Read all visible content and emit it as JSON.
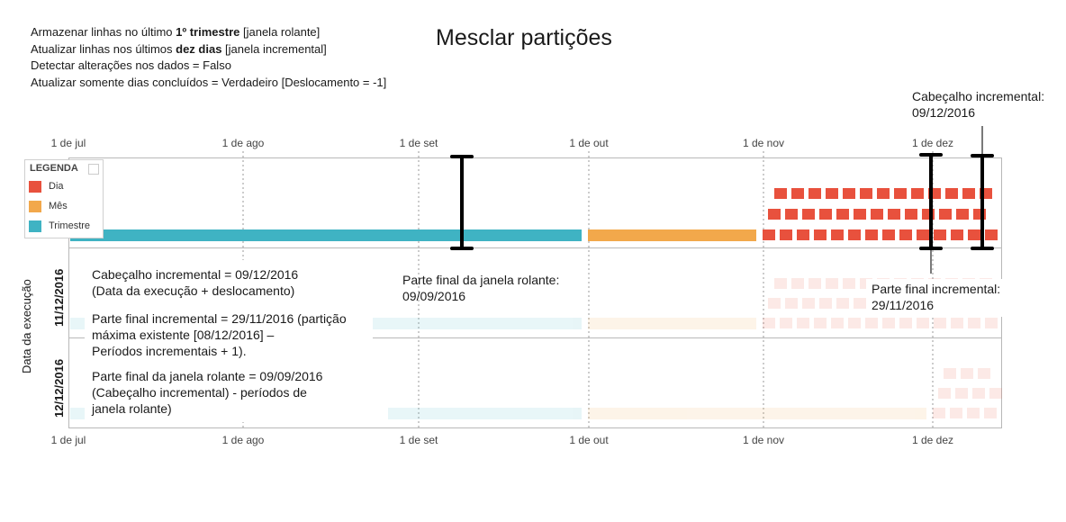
{
  "settings": {
    "line1_pre": "Armazenar linhas no último ",
    "line1_bold": "1º trimestre",
    "line1_post": " [janela rolante]",
    "line2_pre": "Atualizar linhas nos últimos ",
    "line2_bold": "dez dias",
    "line2_post": " [janela incremental]",
    "line3": "Detectar alterações nos dados = Falso",
    "line4": "Atualizar somente dias concluídos = Verdadeiro [Deslocamento = -1]"
  },
  "title": "Mesclar partições",
  "axis": {
    "ticks": [
      "1 de jul",
      "1 de ago",
      "1 de set",
      "1 de out",
      "1 de nov",
      "1 de dez"
    ],
    "y_title": "Data da execução",
    "run_labels": [
      "11/12/2016",
      "12/12/2016"
    ]
  },
  "legend": {
    "title": "LEGENDA",
    "items": [
      {
        "label": "Dia",
        "color": "#e8513d"
      },
      {
        "label": "Mês",
        "color": "#f2a84b"
      },
      {
        "label": "Trimestre",
        "color": "#3fb3c3"
      }
    ]
  },
  "annotations": {
    "incremental_head_title": "Cabeçalho incremental:",
    "incremental_head_date": "09/12/2016",
    "rolling_tail_title": "Parte final da janela rolante:",
    "rolling_tail_date": "09/09/2016",
    "incremental_tail_title": "Parte final incremental:",
    "incremental_tail_date": "29/11/2016"
  },
  "explanations": {
    "head_line1": "Cabeçalho incremental = 09/12/2016",
    "head_line2": "(Data da execução + deslocamento)",
    "inc_tail_line1": "Parte final incremental = 29/11/2016 (partição",
    "inc_tail_line2": "máxima existente [08/12/2016] –",
    "inc_tail_line3": "Períodos incrementais + 1).",
    "roll_tail_line1": "Parte final da janela rolante = 09/09/2016",
    "roll_tail_line2": "(Cabeçalho incremental) - períodos de",
    "roll_tail_line3": "janela rolante)"
  },
  "colors": {
    "day": "#e8513d",
    "month": "#f2a84b",
    "quarter": "#3fb3c3",
    "bracket": "#000000"
  }
}
